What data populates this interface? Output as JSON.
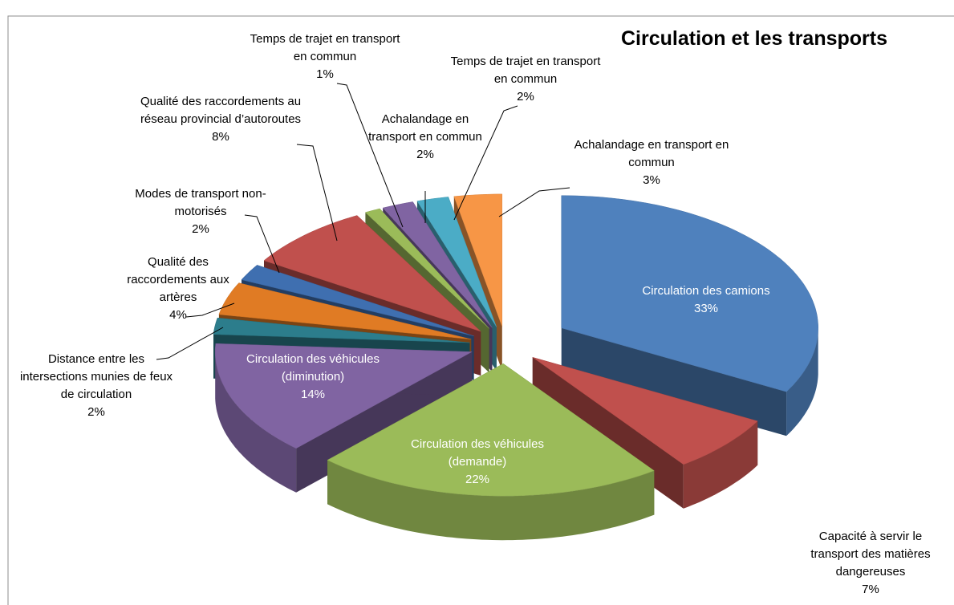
{
  "chart_data": {
    "type": "pie3d",
    "title": "Circulation et les transports",
    "categories": [
      "Circulation des camions",
      "Capacité à servir le transport des matières dangereuses",
      "Circulation des véhicules (demande)",
      "Circulation des véhicules (diminution)",
      "Distance entre les intersections munies de feux de circulation",
      "Qualité des raccordements aux artères",
      "Modes de transport non-motorisés",
      "Qualité des raccordements au réseau provincial d’autoroutes",
      "Temps de trajet en transport en commun",
      "Achalandage en transport en commun",
      "Temps de trajet en transport en commun",
      "Achalandage en transport en commun"
    ],
    "values": [
      33,
      7,
      22,
      14,
      2,
      4,
      2,
      8,
      1,
      2,
      2,
      3
    ],
    "value_labels": [
      "33%",
      "7%",
      "22%",
      "14%",
      "2%",
      "4%",
      "2%",
      "8%",
      "1%",
      "2%",
      "2%",
      "3%"
    ],
    "colors": [
      "#4f81bd",
      "#c0504d",
      "#9bbb59",
      "#8064a2",
      "#2c7d8c",
      "#e07b24",
      "#3f6fb0",
      "#c0504d",
      "#9bbb59",
      "#8064a2",
      "#4bacc6",
      "#f79646"
    ]
  }
}
